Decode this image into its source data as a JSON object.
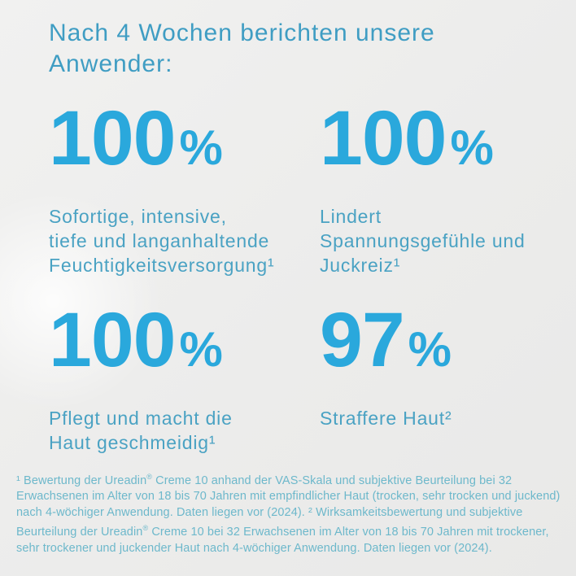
{
  "theme": {
    "background": "#ececeb",
    "accent": "#2aa8dc",
    "heading_color": "#3f9dc3",
    "body_color": "#4aa2c3",
    "footnote_color": "#6db8cb"
  },
  "heading": {
    "lines": [
      "Nach 4 Wochen berichten unsere",
      "Anwender:"
    ]
  },
  "stats": [
    {
      "value": "100",
      "unit": "%",
      "description_lines": [
        "Sofortige, intensive,",
        "tiefe und langanhaltende",
        "Feuchtigkeitsversorgung¹"
      ]
    },
    {
      "value": "100",
      "unit": "%",
      "description_lines": [
        "Lindert",
        "Spannungsgefühle und",
        "Juckreiz¹"
      ]
    },
    {
      "value": "100",
      "unit": "%",
      "description_lines": [
        "Pflegt und macht die",
        "Haut geschmeidig¹"
      ]
    },
    {
      "value": "97",
      "unit": "%",
      "description_lines": [
        "Straffere Haut²"
      ]
    }
  ],
  "footnote": "¹ Bewertung der Ureadin® Creme 10 anhand der VAS-Skala und subjektive Beurteilung bei 32 Erwachsenen im Alter von 18 bis 70 Jahren mit empfindlicher Haut (trocken, sehr trocken und juckend) nach 4-wöchiger Anwendung. Daten liegen vor (2024). ² Wirksamkeitsbewertung und subjektive Beurteilung der Ureadin® Creme 10 bei 32 Erwachsenen im Alter von 18 bis 70 Jahren mit trockener, sehr trockener und juckender Haut nach 4-wöchiger Anwendung. Daten liegen vor (2024)."
}
